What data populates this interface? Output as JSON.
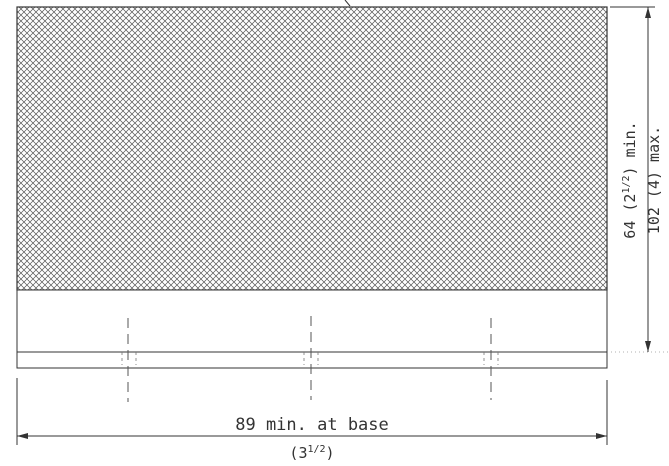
{
  "colors": {
    "ink": "#333333",
    "hatch": "#555555",
    "background": "#ffffff"
  },
  "labels": {
    "width_metric": "89 min. at base",
    "width_imperial": "(3",
    "width_imperial_fraction": "1/2",
    "width_imperial_close": ")",
    "height_min": "64 (2",
    "height_min_fraction": "1/2",
    "height_min_suffix": ") min.",
    "height_max": "102 (4) max."
  }
}
